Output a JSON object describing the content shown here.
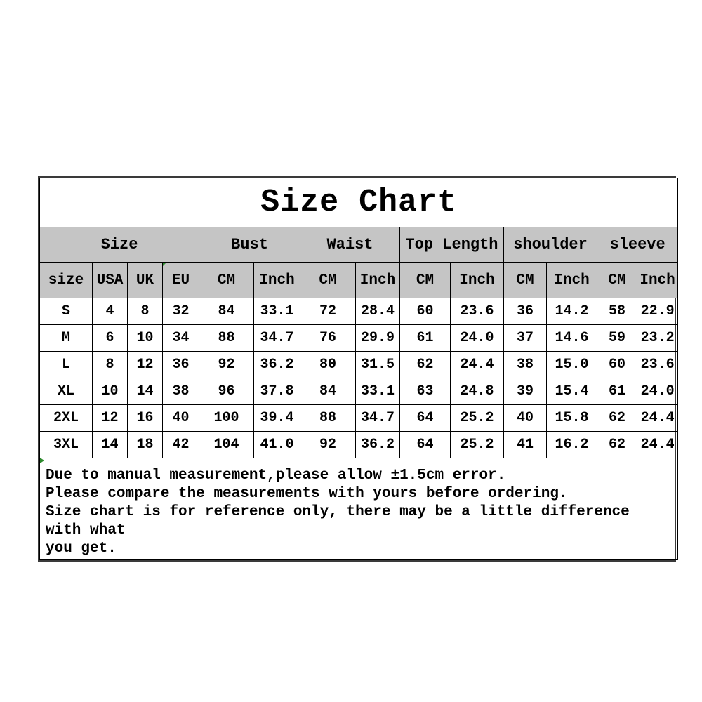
{
  "chart_data": {
    "type": "table",
    "title": "Size Chart",
    "column_groups": [
      {
        "label": "Size",
        "span": 4
      },
      {
        "label": "Bust",
        "span": 2
      },
      {
        "label": "Waist",
        "span": 2
      },
      {
        "label": "Top Length",
        "span": 2
      },
      {
        "label": "shoulder",
        "span": 2
      },
      {
        "label": "sleeve",
        "span": 2
      }
    ],
    "columns": [
      "size",
      "USA",
      "UK",
      "EU",
      "CM",
      "Inch",
      "CM",
      "Inch",
      "CM",
      "Inch",
      "CM",
      "Inch",
      "CM",
      "Inch"
    ],
    "rows": [
      [
        "S",
        "4",
        "8",
        "32",
        "84",
        "33.1",
        "72",
        "28.4",
        "60",
        "23.6",
        "36",
        "14.2",
        "58",
        "22.9"
      ],
      [
        "M",
        "6",
        "10",
        "34",
        "88",
        "34.7",
        "76",
        "29.9",
        "61",
        "24.0",
        "37",
        "14.6",
        "59",
        "23.2"
      ],
      [
        "L",
        "8",
        "12",
        "36",
        "92",
        "36.2",
        "80",
        "31.5",
        "62",
        "24.4",
        "38",
        "15.0",
        "60",
        "23.6"
      ],
      [
        "XL",
        "10",
        "14",
        "38",
        "96",
        "37.8",
        "84",
        "33.1",
        "63",
        "24.8",
        "39",
        "15.4",
        "61",
        "24.0"
      ],
      [
        "2XL",
        "12",
        "16",
        "40",
        "100",
        "39.4",
        "88",
        "34.7",
        "64",
        "25.2",
        "40",
        "15.8",
        "62",
        "24.4"
      ],
      [
        "3XL",
        "14",
        "18",
        "42",
        "104",
        "41.0",
        "92",
        "36.2",
        "64",
        "25.2",
        "41",
        "16.2",
        "62",
        "24.4"
      ]
    ],
    "notes": [
      "Due to manual measurement,please allow ±1.5cm error.",
      "Please compare the measurements with yours before ordering.",
      "Size chart is for reference only, there may be a little difference with what",
      "you get."
    ]
  },
  "colors": {
    "header_bg": "#c5c5c5",
    "grid_border": "#000000",
    "outer_border": "#3a3a3a",
    "note_marker_green": "#2f8b2f",
    "text": "#000000",
    "background": "#ffffff"
  }
}
